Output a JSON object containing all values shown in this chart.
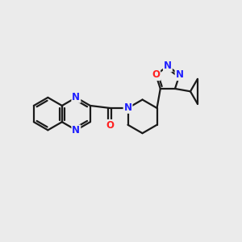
{
  "background_color": "#ebebeb",
  "bond_color": "#1a1a1a",
  "nitrogen_color": "#2020ff",
  "oxygen_color": "#ff2020",
  "line_width": 1.6,
  "figsize": [
    3.0,
    3.0
  ],
  "dpi": 100,
  "xlim": [
    0,
    10
  ],
  "ylim": [
    0,
    10
  ]
}
